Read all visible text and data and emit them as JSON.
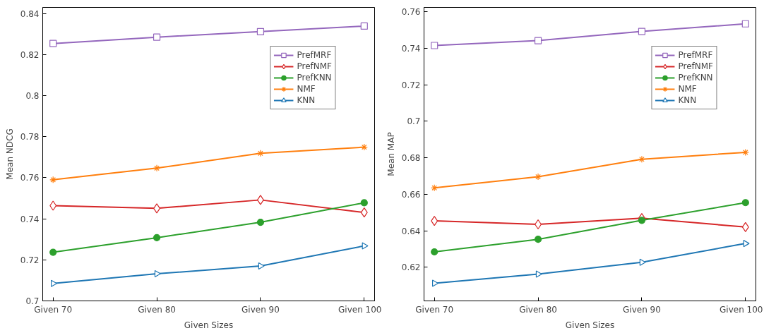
{
  "chart_data": [
    {
      "type": "line",
      "xlabel": "Given Sizes",
      "ylabel": "Mean NDCG",
      "categories": [
        "Given 70",
        "Given 80",
        "Given 90",
        "Given 100"
      ],
      "ylim": [
        0.7,
        0.843
      ],
      "yticks": [
        0.7,
        0.72,
        0.74,
        0.76,
        0.78,
        0.8,
        0.82,
        0.84
      ],
      "grid": false,
      "legend": "top right",
      "series": [
        {
          "name": "PrefMRF",
          "color": "#9467bd",
          "marker": "square",
          "values": [
            0.8254,
            0.8285,
            0.8312,
            0.8339
          ]
        },
        {
          "name": "PrefNMF",
          "color": "#d62728",
          "marker": "diamond",
          "values": [
            0.7464,
            0.7451,
            0.7492,
            0.7431
          ]
        },
        {
          "name": "PrefKNN",
          "color": "#2ca02c",
          "marker": "circle",
          "values": [
            0.7237,
            0.7308,
            0.7383,
            0.7478
          ]
        },
        {
          "name": "NMF",
          "color": "#ff7f0e",
          "marker": "cross",
          "values": [
            0.759,
            0.7647,
            0.7719,
            0.7749
          ]
        },
        {
          "name": "KNN",
          "color": "#1f77b4",
          "marker": "triangle",
          "values": [
            0.7085,
            0.7132,
            0.717,
            0.7268
          ]
        }
      ]
    },
    {
      "type": "line",
      "xlabel": "Given Sizes",
      "ylabel": "Mean MAP",
      "categories": [
        "Given 70",
        "Given 80",
        "Given 90",
        "Given 100"
      ],
      "ylim": [
        0.6015,
        0.7625
      ],
      "yticks": [
        0.62,
        0.64,
        0.66,
        0.68,
        0.7,
        0.72,
        0.74,
        0.76
      ],
      "grid": false,
      "legend": "top right",
      "series": [
        {
          "name": "PrefMRF",
          "color": "#9467bd",
          "marker": "square",
          "values": [
            0.7416,
            0.7443,
            0.7493,
            0.7535
          ]
        },
        {
          "name": "PrefNMF",
          "color": "#d62728",
          "marker": "diamond",
          "values": [
            0.6454,
            0.6435,
            0.6469,
            0.642
          ]
        },
        {
          "name": "PrefKNN",
          "color": "#2ca02c",
          "marker": "circle",
          "values": [
            0.6284,
            0.6353,
            0.6457,
            0.6554
          ]
        },
        {
          "name": "NMF",
          "color": "#ff7f0e",
          "marker": "cross",
          "values": [
            0.6635,
            0.6696,
            0.6792,
            0.683
          ]
        },
        {
          "name": "KNN",
          "color": "#1f77b4",
          "marker": "triangle",
          "values": [
            0.6112,
            0.6162,
            0.6227,
            0.633
          ]
        }
      ]
    }
  ]
}
